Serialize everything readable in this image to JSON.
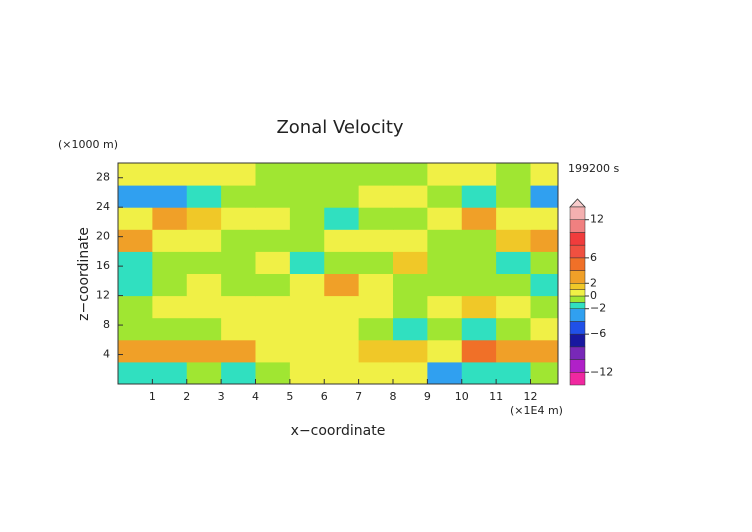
{
  "chart_data": {
    "type": "heatmap",
    "title": "Zonal Velocity",
    "xlabel": "x−coordinate",
    "ylabel": "z−coordinate",
    "y_unit_label": "(×1000 m)",
    "x_unit_label": "(×1E4 m)",
    "time_label": "199200 s",
    "x": [
      0.5,
      1.5,
      2.5,
      3.5,
      4.5,
      5.5,
      6.5,
      7.5,
      8.5,
      9.5,
      10.5,
      11.5,
      12.5
    ],
    "y": [
      1.5,
      4.5,
      7.5,
      10.5,
      13.5,
      16.5,
      19.5,
      22.5,
      25.5,
      28.5
    ],
    "values": [
      [
        -1.5,
        -1.5,
        -0.5,
        -1.5,
        -0.5,
        0.5,
        0.5,
        0.5,
        0.5,
        -3,
        -2,
        -1.5,
        -0.5
      ],
      [
        2.5,
        2.5,
        3,
        2.5,
        0.5,
        0.5,
        0.5,
        1.5,
        1.5,
        0.5,
        5,
        3,
        2.5
      ],
      [
        -0.5,
        -0.5,
        -0.5,
        0.5,
        0.5,
        0.5,
        0.5,
        -0.5,
        -1.5,
        -0.5,
        -2,
        -0.5,
        0.5
      ],
      [
        -0.5,
        0.5,
        0.5,
        0.5,
        0.5,
        0.5,
        0.5,
        0.5,
        -0.5,
        0.5,
        1.5,
        0.5,
        -0.5
      ],
      [
        -2,
        -0.5,
        0.5,
        -0.5,
        -0.5,
        0.5,
        2.5,
        0.5,
        -0.5,
        -0.5,
        -0.5,
        -0.5,
        -1.5
      ],
      [
        -1.5,
        -0.5,
        -0.5,
        -0.5,
        0.5,
        -1.5,
        -0.5,
        -0.5,
        1.5,
        -0.5,
        -0.5,
        -1.5,
        -0.5
      ],
      [
        2.5,
        0.5,
        0.5,
        -0.5,
        -0.5,
        -0.5,
        0.5,
        0.5,
        0.5,
        -0.5,
        -0.5,
        1.5,
        2.5
      ],
      [
        0.5,
        2.5,
        1.5,
        0.5,
        0.5,
        -0.5,
        -1.5,
        -1,
        -0.5,
        0.5,
        2.5,
        0.5,
        0.5
      ],
      [
        -4,
        -3,
        -1.5,
        -0.5,
        -0.5,
        -0.5,
        -0.5,
        0.5,
        0.5,
        -0.5,
        -1.5,
        -0.5,
        -2.5
      ],
      [
        0.5,
        0.5,
        0.5,
        0.5,
        -0.5,
        -0.5,
        -0.5,
        -0.5,
        -0.5,
        0.5,
        0.5,
        -0.5,
        0.5
      ]
    ],
    "xlim": [
      0,
      12.8
    ],
    "ylim": [
      0,
      30
    ],
    "xticks": [
      1,
      2,
      3,
      4,
      5,
      6,
      7,
      8,
      9,
      10,
      11,
      12
    ],
    "yticks": [
      4,
      8,
      12,
      16,
      20,
      24,
      28
    ],
    "colorbar": {
      "levels": [
        -14,
        -12,
        -10,
        -8,
        -6,
        -4,
        -2,
        -1,
        0,
        1,
        2,
        4,
        6,
        8,
        10,
        12,
        14
      ],
      "colors": [
        "#f028a0",
        "#b020c8",
        "#7828b8",
        "#1818a0",
        "#2050e8",
        "#30a0f0",
        "#30e0c0",
        "#a0e632",
        "#f0f046",
        "#f0c828",
        "#f0a028",
        "#f07028",
        "#f05040",
        "#f03c3c",
        "#f08080",
        "#f4b0b0"
      ],
      "ticks": [
        12,
        6,
        2,
        0,
        {
          "value": -2,
          "label": "−2"
        },
        {
          "value": -6,
          "label": "−6"
        },
        {
          "value": -12,
          "label": "−12"
        }
      ]
    }
  }
}
